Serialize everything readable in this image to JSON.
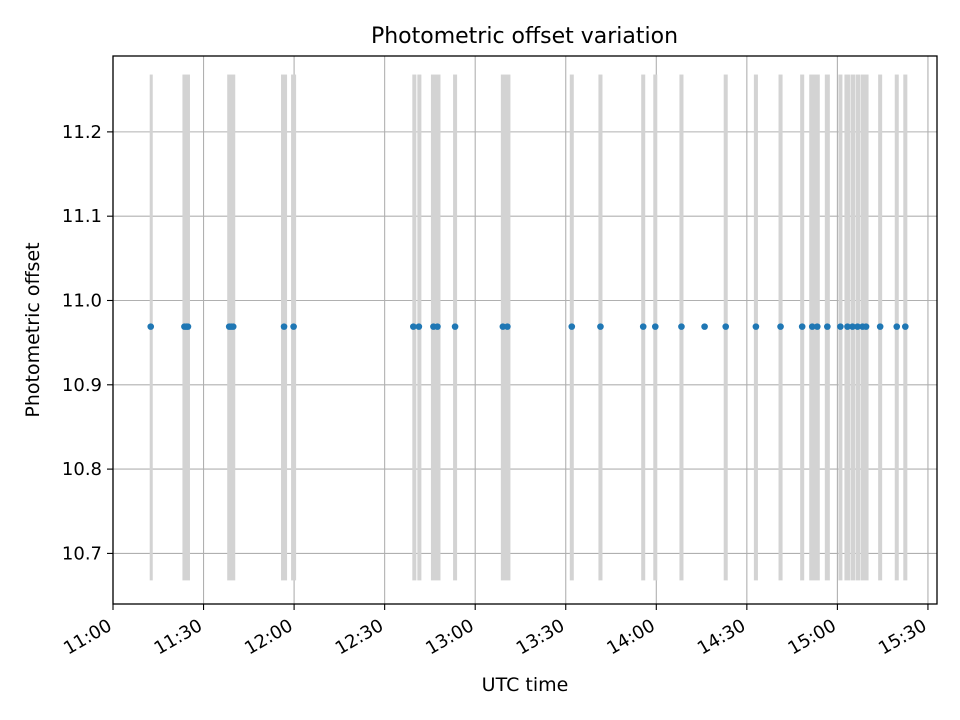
{
  "chart_data": {
    "type": "scatter",
    "title": "Photometric offset variation",
    "xlabel": "UTC time",
    "ylabel": "Photometric offset",
    "x_tick_labels": [
      "11:00",
      "11:30",
      "12:00",
      "12:30",
      "13:00",
      "13:30",
      "14:00",
      "14:30",
      "15:00",
      "15:30"
    ],
    "y_tick_labels": [
      "10.7",
      "10.8",
      "10.9",
      "11.0",
      "11.1",
      "11.2"
    ],
    "xlim": [
      "11:00",
      "15:33"
    ],
    "ylim": [
      10.64,
      11.29
    ],
    "grid": true,
    "point_color": "#1f77b4",
    "band_color": "#d3d3d3",
    "band_y_range": [
      10.668,
      11.268
    ],
    "points": [
      {
        "x": "11:12:30",
        "y": 10.969
      },
      {
        "x": "11:23:40",
        "y": 10.969
      },
      {
        "x": "11:24:20",
        "y": 10.969
      },
      {
        "x": "11:24:50",
        "y": 10.969
      },
      {
        "x": "11:38:30",
        "y": 10.969
      },
      {
        "x": "11:39:10",
        "y": 10.969
      },
      {
        "x": "11:39:50",
        "y": 10.969
      },
      {
        "x": "11:56:40",
        "y": 10.969
      },
      {
        "x": "11:59:50",
        "y": 10.969
      },
      {
        "x": "12:39:30",
        "y": 10.969
      },
      {
        "x": "12:41:20",
        "y": 10.969
      },
      {
        "x": "12:46:10",
        "y": 10.969
      },
      {
        "x": "12:47:30",
        "y": 10.969
      },
      {
        "x": "12:53:20",
        "y": 10.969
      },
      {
        "x": "13:09:10",
        "y": 10.969
      },
      {
        "x": "13:10:40",
        "y": 10.969
      },
      {
        "x": "13:32:00",
        "y": 10.969
      },
      {
        "x": "13:41:30",
        "y": 10.969
      },
      {
        "x": "13:55:40",
        "y": 10.969
      },
      {
        "x": "13:59:40",
        "y": 10.969
      },
      {
        "x": "14:08:20",
        "y": 10.969
      },
      {
        "x": "14:16:00",
        "y": 10.969
      },
      {
        "x": "14:23:00",
        "y": 10.969
      },
      {
        "x": "14:33:00",
        "y": 10.969
      },
      {
        "x": "14:41:10",
        "y": 10.969
      },
      {
        "x": "14:48:20",
        "y": 10.969
      },
      {
        "x": "14:51:40",
        "y": 10.969
      },
      {
        "x": "14:53:20",
        "y": 10.969
      },
      {
        "x": "14:56:40",
        "y": 10.969
      },
      {
        "x": "15:01:00",
        "y": 10.969
      },
      {
        "x": "15:03:20",
        "y": 10.969
      },
      {
        "x": "15:05:00",
        "y": 10.969
      },
      {
        "x": "15:06:40",
        "y": 10.969
      },
      {
        "x": "15:08:20",
        "y": 10.969
      },
      {
        "x": "15:09:30",
        "y": 10.969
      },
      {
        "x": "15:14:10",
        "y": 10.969
      },
      {
        "x": "15:19:40",
        "y": 10.969
      },
      {
        "x": "15:22:30",
        "y": 10.969
      }
    ],
    "bands": [
      [
        "11:12:10",
        "11:13:10"
      ],
      [
        "11:23:00",
        "11:25:30"
      ],
      [
        "11:37:50",
        "11:40:30"
      ],
      [
        "11:55:40",
        "11:57:40"
      ],
      [
        "11:59:00",
        "12:00:40"
      ],
      [
        "12:39:10",
        "12:40:30"
      ],
      [
        "12:40:50",
        "12:42:10"
      ],
      [
        "12:45:20",
        "12:48:30"
      ],
      [
        "12:52:40",
        "12:54:00"
      ],
      [
        "13:08:30",
        "13:11:40"
      ],
      [
        "13:31:20",
        "13:32:40"
      ],
      [
        "13:40:50",
        "13:42:10"
      ],
      [
        "13:55:00",
        "13:56:20"
      ],
      [
        "13:59:00",
        "14:00:20"
      ],
      [
        "14:07:40",
        "14:09:00"
      ],
      [
        "14:22:20",
        "14:23:40"
      ],
      [
        "14:32:20",
        "14:33:40"
      ],
      [
        "14:40:30",
        "14:41:50"
      ],
      [
        "14:47:40",
        "14:49:00"
      ],
      [
        "14:50:40",
        "14:54:10"
      ],
      [
        "14:55:50",
        "14:57:30"
      ],
      [
        "15:00:20",
        "15:01:40"
      ],
      [
        "15:02:20",
        "15:04:10"
      ],
      [
        "15:04:20",
        "15:05:50"
      ],
      [
        "15:06:00",
        "15:07:30"
      ],
      [
        "15:07:40",
        "15:10:20"
      ],
      [
        "15:13:30",
        "15:14:50"
      ],
      [
        "15:19:00",
        "15:20:20"
      ],
      [
        "15:21:50",
        "15:23:10"
      ]
    ]
  }
}
